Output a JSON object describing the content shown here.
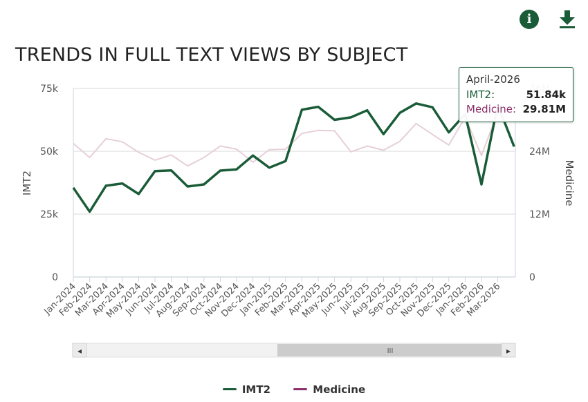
{
  "header": {
    "title": "TRENDS IN FULL TEXT VIEWS BY SUBJECT",
    "info_icon_glyph": "i",
    "download_icon": "download-icon"
  },
  "colors": {
    "imt2": "#1a5c38",
    "medicine": "#8b2f6a",
    "medicine_line": "#e6cfd8",
    "grid": "#e6e6e6"
  },
  "chart_data": {
    "type": "line",
    "title": "TRENDS IN FULL TEXT VIEWS BY SUBJECT",
    "categories": [
      "Jan-2024",
      "Feb-2024",
      "Mar-2024",
      "Apr-2024",
      "May-2024",
      "Jun-2024",
      "Jul-2024",
      "Aug-2024",
      "Sep-2024",
      "Oct-2024",
      "Nov-2024",
      "Dec-2024",
      "Jan-2025",
      "Feb-2025",
      "Mar-2025",
      "Apr-2025",
      "May-2025",
      "Jun-2025",
      "Jul-2025",
      "Aug-2025",
      "Sep-2025",
      "Oct-2025",
      "Nov-2025",
      "Dec-2025",
      "Jan-2026",
      "Feb-2026",
      "Mar-2026",
      "April-2026"
    ],
    "tick_labels": [
      "Jan-2024",
      "Feb-2024",
      "Mar-2024",
      "Apr-2024",
      "May-2024",
      "Jun-2024",
      "Jul-2024",
      "Aug-2024",
      "Sep-2024",
      "Oct-2024",
      "Nov-2024",
      "Dec-2024",
      "Jan-2025",
      "Feb-2025",
      "Mar-2025",
      "Apr-2025",
      "May-2025",
      "Jun-2025",
      "Jul-2025",
      "Aug-2025",
      "Sep-2025",
      "Oct-2025",
      "Nov-2025",
      "Dec-2025",
      "Jan-2026",
      "Feb-2026",
      "Mar-2026"
    ],
    "series": [
      {
        "name": "IMT2",
        "axis": "left",
        "values": [
          35500,
          26000,
          36300,
          37200,
          33000,
          42100,
          42400,
          36000,
          36800,
          42300,
          42800,
          48300,
          43500,
          46100,
          66500,
          67700,
          62500,
          63500,
          66300,
          56800,
          65300,
          69000,
          67500,
          57500,
          64800,
          36800,
          68500,
          51840
        ]
      },
      {
        "name": "Medicine",
        "axis": "right",
        "values": [
          25500,
          22800,
          26400,
          25800,
          23800,
          22300,
          23300,
          21200,
          22800,
          25000,
          24400,
          21900,
          24300,
          24400,
          27400,
          28000,
          27900,
          23900,
          25000,
          24200,
          25900,
          29300,
          27200,
          25200,
          30500,
          23200,
          31500,
          29810
        ]
      }
    ],
    "yaxis_left": {
      "label": "IMT2",
      "min": 0,
      "max": 75000,
      "ticks": [
        0,
        25000,
        50000,
        75000
      ],
      "tick_labels": [
        "0",
        "25k",
        "50k",
        "75k"
      ]
    },
    "yaxis_right": {
      "label": "Medicine",
      "min": 0,
      "max": 36000,
      "ticks": [
        0,
        12000,
        24000,
        36000
      ],
      "tick_labels": [
        "0",
        "12M",
        "24M",
        "36M"
      ]
    },
    "grid": true,
    "legend_position": "bottom"
  },
  "tooltip": {
    "title": "April-2026",
    "rows": [
      {
        "label": "IMT2:",
        "value": "51.84k"
      },
      {
        "label": "Medicine:",
        "value": "29.81M"
      }
    ]
  },
  "legend": {
    "items": [
      {
        "label": "IMT2"
      },
      {
        "label": "Medicine"
      }
    ]
  },
  "scrollbar": {
    "left_arrow": "◂",
    "right_arrow": "▸",
    "grip": "III"
  }
}
